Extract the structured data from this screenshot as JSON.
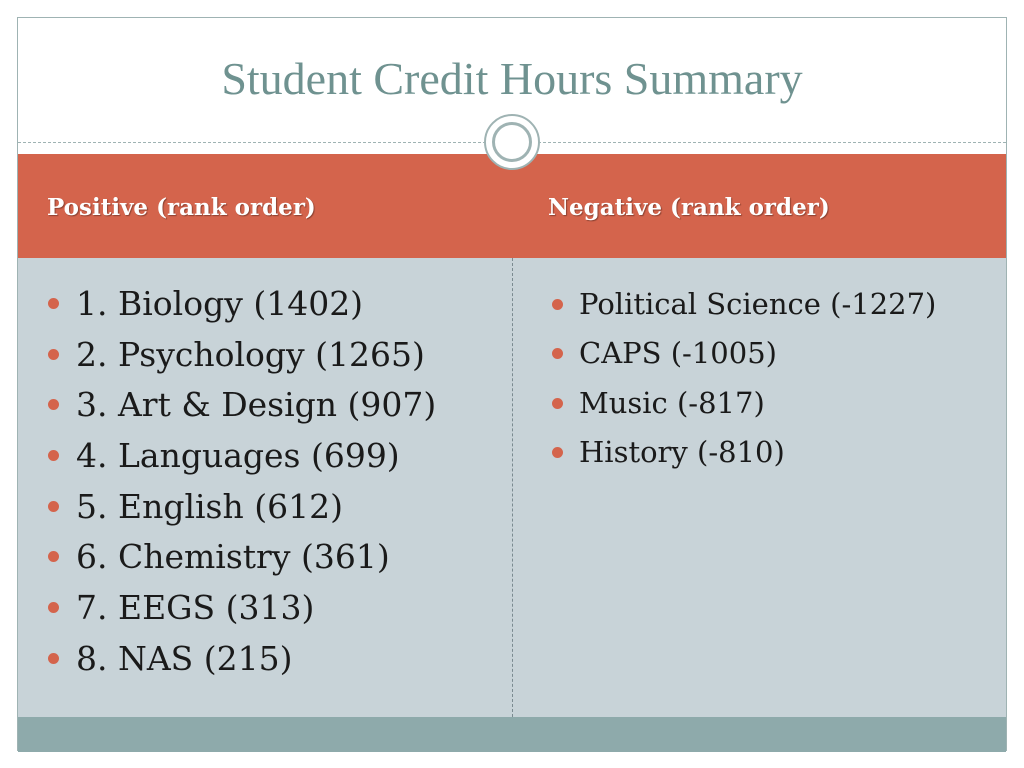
{
  "slide": {
    "title": "Student Credit Hours Summary",
    "columns": [
      {
        "heading": "Positive (rank order)",
        "items": [
          "1. Biology (1402)",
          "2. Psychology (1265)",
          "3. Art & Design (907)",
          "4. Languages (699)",
          "5. English (612)",
          "6. Chemistry (361)",
          "7. EEGS (313)",
          "8. NAS (215)"
        ]
      },
      {
        "heading": "Negative (rank order)",
        "items": [
          "Political Science (-1227)",
          "CAPS (-1005)",
          "Music (-817)",
          "History (-810)"
        ]
      }
    ]
  },
  "colors": {
    "accent": "#d4644c",
    "title": "#6f9290",
    "panel": "#c8d3d8",
    "footer": "#8eaaab"
  }
}
